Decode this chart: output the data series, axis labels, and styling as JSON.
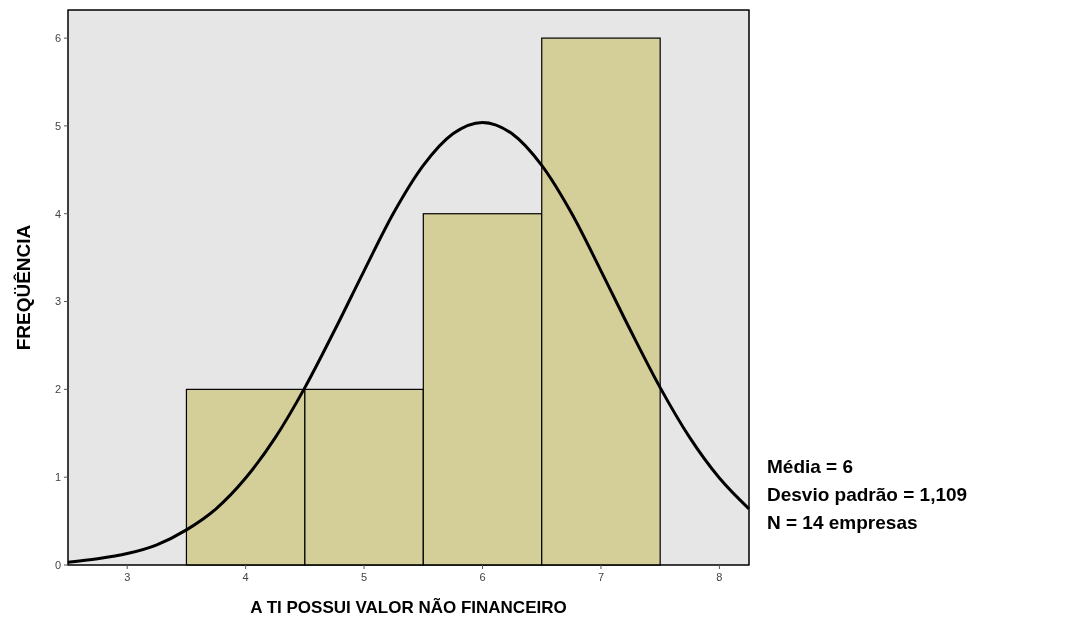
{
  "chart_data": {
    "type": "histogram",
    "xlabel": "A TI POSSUI VALOR NÃO FINANCEIRO",
    "ylabel": "FREQÜÊNCIA",
    "bins": [
      3.5,
      4.5,
      5.5,
      6.5,
      7.5
    ],
    "values": [
      2,
      2,
      4,
      6
    ],
    "color": "#d4cf98",
    "series": [
      {
        "type": "line",
        "color": "#000000",
        "x": [
          2.5,
          2.75,
          3,
          3.25,
          3.5,
          3.75,
          4,
          4.25,
          4.5,
          4.75,
          5,
          5.25,
          5.5,
          5.75,
          6,
          6.25,
          6.5,
          6.75,
          7,
          7.25,
          7.5,
          7.75,
          8,
          8.25
        ],
        "values": [
          0.03,
          0.07,
          0.13,
          0.23,
          0.4,
          0.64,
          0.99,
          1.45,
          2.02,
          2.67,
          3.35,
          4.01,
          4.55,
          4.91,
          5.04,
          4.91,
          4.55,
          4.01,
          3.35,
          2.67,
          2.02,
          1.45,
          0.99,
          0.64
        ]
      }
    ],
    "xlim": [
      2.5,
      8.25
    ],
    "xticks": [
      3,
      4,
      5,
      6,
      7,
      8
    ],
    "ylim": [
      0,
      6.32
    ],
    "yticks": [
      0,
      1,
      2,
      3,
      4,
      5,
      6
    ],
    "grid": false,
    "annotations": [
      "Média = 6",
      "Desvio padrão = 1,109",
      "N = 14 empresas"
    ]
  }
}
